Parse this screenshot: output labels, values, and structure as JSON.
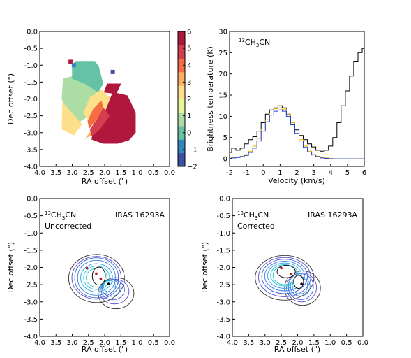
{
  "chart_data": [
    {
      "id": "velocity_map",
      "type": "heatmap",
      "xlabel": "RA offset (\")",
      "ylabel": "Dec offset (\")",
      "xlim": [
        4.0,
        0.0
      ],
      "ylim": [
        -4.0,
        0.0
      ],
      "xticks": [
        "4.0",
        "3.5",
        "3.0",
        "2.5",
        "2.0",
        "1.5",
        "1.0",
        "0.5",
        "0.0"
      ],
      "yticks": [
        "0.0",
        "-0.5",
        "-1.0",
        "-1.5",
        "-2.0",
        "-2.5",
        "-3.0",
        "-3.5",
        "-4.0"
      ],
      "colorbar": {
        "range": [
          -2,
          6
        ],
        "ticks": [
          "6",
          "5",
          "4",
          "3",
          "2",
          "1",
          "0",
          "−1",
          "−2"
        ],
        "colors": [
          "#3d4fa2",
          "#3288bd",
          "#66c2a5",
          "#abdda4",
          "#e6f598",
          "#fee08b",
          "#fdae61",
          "#f46d43",
          "#d53e4f",
          "#b0173d"
        ]
      },
      "regions": [
        {
          "value": 1.0,
          "polygon": [
            [
              3.28,
              -1.4
            ],
            [
              3.32,
              -2.0
            ],
            [
              3.08,
              -2.55
            ],
            [
              2.82,
              -2.7
            ],
            [
              2.4,
              -2.45
            ],
            [
              2.08,
              -2.05
            ],
            [
              2.2,
              -1.65
            ],
            [
              2.45,
              -1.45
            ],
            [
              2.88,
              -1.3
            ]
          ]
        },
        {
          "value": 0.0,
          "polygon": [
            [
              2.9,
              -0.88
            ],
            [
              2.3,
              -0.88
            ],
            [
              2.18,
              -1.05
            ],
            [
              2.05,
              -1.55
            ],
            [
              2.2,
              -1.8
            ],
            [
              2.6,
              -1.55
            ],
            [
              3.0,
              -1.4
            ],
            [
              3.0,
              -1.02
            ]
          ]
        },
        {
          "value": 2.3,
          "polygon": [
            [
              3.3,
              -2.1
            ],
            [
              3.32,
              -2.9
            ],
            [
              2.95,
              -3.08
            ],
            [
              2.7,
              -2.75
            ],
            [
              2.95,
              -2.48
            ]
          ]
        },
        {
          "value": 2.0,
          "polygon": [
            [
              2.45,
              -1.95
            ],
            [
              2.1,
              -1.72
            ],
            [
              1.78,
              -2.0
            ],
            [
              2.02,
              -2.62
            ],
            [
              2.45,
              -2.78
            ],
            [
              2.65,
              -2.4
            ]
          ]
        },
        {
          "value": 3.2,
          "polygon": [
            [
              2.2,
              -2.7
            ],
            [
              2.45,
              -2.98
            ],
            [
              2.6,
              -3.18
            ],
            [
              2.38,
              -3.05
            ]
          ]
        },
        {
          "value": 5.3,
          "polygon": [
            [
              1.92,
              -1.55
            ],
            [
              1.5,
              -1.55
            ],
            [
              1.65,
              -1.85
            ],
            [
              2.02,
              -1.8
            ]
          ]
        },
        {
          "value": 6.0,
          "polygon": [
            [
              1.75,
              -1.8
            ],
            [
              1.3,
              -1.9
            ],
            [
              1.05,
              -2.4
            ],
            [
              1.05,
              -3.0
            ],
            [
              1.25,
              -3.22
            ],
            [
              1.6,
              -3.32
            ],
            [
              2.05,
              -3.32
            ],
            [
              2.4,
              -3.2
            ],
            [
              2.35,
              -2.95
            ],
            [
              2.15,
              -2.65
            ],
            [
              1.95,
              -2.3
            ]
          ]
        },
        {
          "value": 5.0,
          "polygon": [
            [
              2.05,
              -2.25
            ],
            [
              1.85,
              -2.5
            ],
            [
              2.15,
              -2.9
            ],
            [
              2.4,
              -3.1
            ],
            [
              2.45,
              -2.9
            ],
            [
              2.22,
              -2.58
            ]
          ]
        },
        {
          "value": 4.0,
          "polygon": [
            [
              2.1,
              -2.05
            ],
            [
              2.05,
              -2.28
            ],
            [
              2.25,
              -2.6
            ],
            [
              2.48,
              -2.88
            ],
            [
              2.52,
              -2.65
            ],
            [
              2.35,
              -2.3
            ]
          ]
        }
      ],
      "pixels": [
        {
          "x": 3.05,
          "y": -0.9,
          "value": 6.0
        },
        {
          "x": 2.95,
          "y": -1.0,
          "value": -1.0
        },
        {
          "x": 1.75,
          "y": -1.2,
          "value": -2.0
        }
      ]
    },
    {
      "id": "spectrum",
      "type": "line",
      "title": "13CH3CN",
      "xlabel": "Velocity (km/s)",
      "ylabel": "Brightness temperature (K)",
      "xlim": [
        -2,
        6
      ],
      "ylim": [
        -1.8,
        30
      ],
      "xticks": [
        "-2",
        "-1",
        "0",
        "1",
        "2",
        "3",
        "4",
        "5",
        "6"
      ],
      "yticks": [
        "0",
        "5",
        "10",
        "15",
        "20",
        "25",
        "30"
      ],
      "series": [
        {
          "color": "#000000",
          "x": [
            -2.0,
            -1.75,
            -1.5,
            -1.25,
            -1.0,
            -0.75,
            -0.5,
            -0.25,
            0.0,
            0.25,
            0.5,
            0.75,
            1.0,
            1.25,
            1.5,
            1.75,
            2.0,
            2.25,
            2.5,
            2.75,
            3.0,
            3.25,
            3.5,
            3.75,
            4.0,
            4.25,
            4.5,
            4.75,
            5.0,
            5.25,
            5.5,
            5.75,
            6.0
          ],
          "y": [
            1.5,
            2.5,
            2.0,
            2.5,
            3.5,
            4.5,
            5.2,
            6.5,
            8.5,
            10.5,
            11.5,
            12.0,
            12.5,
            12.0,
            10.5,
            8.5,
            6.8,
            5.5,
            4.5,
            3.5,
            2.8,
            2.0,
            1.8,
            2.0,
            3.0,
            5.0,
            8.5,
            12.5,
            16.0,
            19.5,
            23.0,
            25.0,
            26.0
          ]
        },
        {
          "color": "#e8b400",
          "x": [
            -2.0,
            -1.75,
            -1.5,
            -1.25,
            -1.0,
            -0.75,
            -0.5,
            -0.25,
            0.0,
            0.25,
            0.5,
            0.75,
            1.0,
            1.25,
            1.5,
            1.75,
            2.0,
            2.25,
            2.5,
            2.75,
            3.0,
            3.25,
            3.5,
            3.75,
            4.0,
            4.25,
            4.5,
            4.75,
            5.0,
            5.25,
            5.5,
            5.75,
            6.0
          ],
          "y": [
            0.2,
            0.3,
            0.4,
            0.6,
            1.0,
            1.8,
            3.0,
            4.8,
            7.0,
            9.2,
            10.8,
            11.8,
            12.0,
            11.7,
            10.5,
            8.5,
            6.5,
            4.5,
            3.0,
            1.8,
            1.0,
            0.6,
            0.3,
            0.2,
            0.1,
            0.0,
            0.0,
            0.0,
            0.0,
            0.0,
            0.0,
            0.0,
            0.0
          ]
        },
        {
          "color": "#1f3fe0",
          "x": [
            -2.0,
            -1.75,
            -1.5,
            -1.25,
            -1.0,
            -0.75,
            -0.5,
            -0.25,
            0.0,
            0.25,
            0.5,
            0.75,
            1.0,
            1.25,
            1.5,
            1.75,
            2.0,
            2.25,
            2.5,
            2.75,
            3.0,
            3.25,
            3.5,
            3.75,
            4.0,
            4.25,
            4.5,
            4.75,
            5.0,
            5.25,
            5.5,
            5.75,
            6.0
          ],
          "y": [
            0.1,
            0.2,
            0.3,
            0.5,
            0.8,
            1.5,
            2.5,
            4.2,
            6.5,
            8.7,
            10.3,
            11.2,
            11.5,
            11.2,
            10.0,
            8.0,
            6.0,
            4.2,
            2.7,
            1.6,
            0.9,
            0.5,
            0.2,
            0.1,
            0.0,
            0.0,
            0.0,
            0.0,
            0.0,
            0.0,
            0.0,
            0.0,
            0.0
          ]
        }
      ]
    },
    {
      "id": "uncorrected_map",
      "type": "contour",
      "title": "13CH3CN",
      "annotations": [
        "Uncorrected",
        "IRAS 16293A"
      ],
      "xlabel": "RA offset (\")",
      "ylabel": "Dec offset (\")",
      "xlim": [
        4.0,
        0.0
      ],
      "ylim": [
        -4.0,
        0.0
      ],
      "xticks": [
        "4.0",
        "3.5",
        "3.0",
        "2.5",
        "2.0",
        "1.5",
        "1.0",
        "0.5",
        "0.0"
      ],
      "yticks": [
        "0.0",
        "-0.5",
        "-1.0",
        "-1.5",
        "-2.0",
        "-2.5",
        "-3.0",
        "-3.5",
        "-4.0"
      ],
      "contours": [
        {
          "color": "#333333",
          "lobes": [
            [
              2.25,
              -2.32,
              0.86,
              0.7
            ],
            [
              1.65,
              -2.75,
              0.55,
              0.45
            ]
          ]
        },
        {
          "color": "#5a4fcf",
          "lobes": [
            [
              2.25,
              -2.3,
              0.76,
              0.62
            ],
            [
              1.7,
              -2.7,
              0.45,
              0.36
            ]
          ]
        },
        {
          "color": "#3b5de0",
          "lobes": [
            [
              2.25,
              -2.3,
              0.67,
              0.55
            ],
            [
              1.75,
              -2.65,
              0.36,
              0.29
            ]
          ]
        },
        {
          "color": "#2f7fe8",
          "lobes": [
            [
              2.25,
              -2.3,
              0.58,
              0.48
            ],
            [
              1.8,
              -2.6,
              0.27,
              0.22
            ]
          ]
        },
        {
          "color": "#2aa0e8",
          "lobes": [
            [
              2.25,
              -2.3,
              0.49,
              0.41
            ],
            [
              1.85,
              -2.55,
              0.18,
              0.15
            ]
          ]
        },
        {
          "color": "#20bfe0",
          "lobes": [
            [
              2.25,
              -2.3,
              0.4,
              0.34
            ]
          ]
        },
        {
          "color": "#26c9c0",
          "lobes": [
            [
              2.25,
              -2.3,
              0.32,
              0.27
            ]
          ]
        }
      ],
      "core": {
        "x": 2.18,
        "y": -2.25,
        "rx": 0.2,
        "ry": 0.26
      },
      "markers": [
        {
          "x": 2.26,
          "y": -2.18,
          "color": "#b01020"
        },
        {
          "x": 2.12,
          "y": -2.33,
          "color": "#b01020"
        },
        {
          "x": 1.88,
          "y": -2.48,
          "color": "#000000"
        },
        {
          "x": 2.55,
          "y": -2.02,
          "color": "#b01020"
        }
      ]
    },
    {
      "id": "corrected_map",
      "type": "contour",
      "title": "13CH3CN",
      "annotations": [
        "Corrected",
        "IRAS 16293A"
      ],
      "xlabel": "RA offset (\")",
      "ylabel": "Dec offset (\")",
      "xlim": [
        4.0,
        0.0
      ],
      "ylim": [
        -4.0,
        0.0
      ],
      "xticks": [
        "4.0",
        "3.5",
        "3.0",
        "2.5",
        "2.0",
        "1.5",
        "1.0",
        "0.5",
        "0.0"
      ],
      "yticks": [
        "0.0",
        "-0.5",
        "-1.0",
        "-1.5",
        "-2.0",
        "-2.5",
        "-3.0",
        "-3.5",
        "-4.0"
      ],
      "contours": [
        {
          "color": "#333333",
          "lobes": [
            [
              2.4,
              -2.3,
              0.9,
              0.65
            ],
            [
              1.85,
              -2.6,
              0.55,
              0.5
            ]
          ]
        },
        {
          "color": "#5a4fcf",
          "lobes": [
            [
              2.4,
              -2.28,
              0.8,
              0.57
            ],
            [
              1.88,
              -2.58,
              0.46,
              0.42
            ]
          ]
        },
        {
          "color": "#3b5de0",
          "lobes": [
            [
              2.4,
              -2.26,
              0.7,
              0.5
            ],
            [
              1.9,
              -2.56,
              0.38,
              0.35
            ]
          ]
        },
        {
          "color": "#2f7fe8",
          "lobes": [
            [
              2.4,
              -2.25,
              0.61,
              0.43
            ],
            [
              1.92,
              -2.55,
              0.3,
              0.28
            ]
          ]
        },
        {
          "color": "#2aa0e8",
          "lobes": [
            [
              2.4,
              -2.24,
              0.52,
              0.37
            ],
            [
              1.93,
              -2.53,
              0.23,
              0.22
            ]
          ]
        },
        {
          "color": "#20bfe0",
          "lobes": [
            [
              2.4,
              -2.23,
              0.43,
              0.31
            ]
          ]
        },
        {
          "color": "#26c9c0",
          "lobes": [
            [
              2.4,
              -2.23,
              0.35,
              0.25
            ]
          ]
        }
      ],
      "cores": [
        {
          "x": 2.35,
          "y": -2.12,
          "rx": 0.28,
          "ry": 0.18
        },
        {
          "x": 1.97,
          "y": -2.42,
          "rx": 0.15,
          "ry": 0.19
        }
      ],
      "markers": [
        {
          "x": 2.2,
          "y": -2.2,
          "color": "#b01020"
        },
        {
          "x": 2.5,
          "y": -2.02,
          "color": "#b01020"
        },
        {
          "x": 1.88,
          "y": -2.48,
          "color": "#000000"
        }
      ]
    }
  ]
}
